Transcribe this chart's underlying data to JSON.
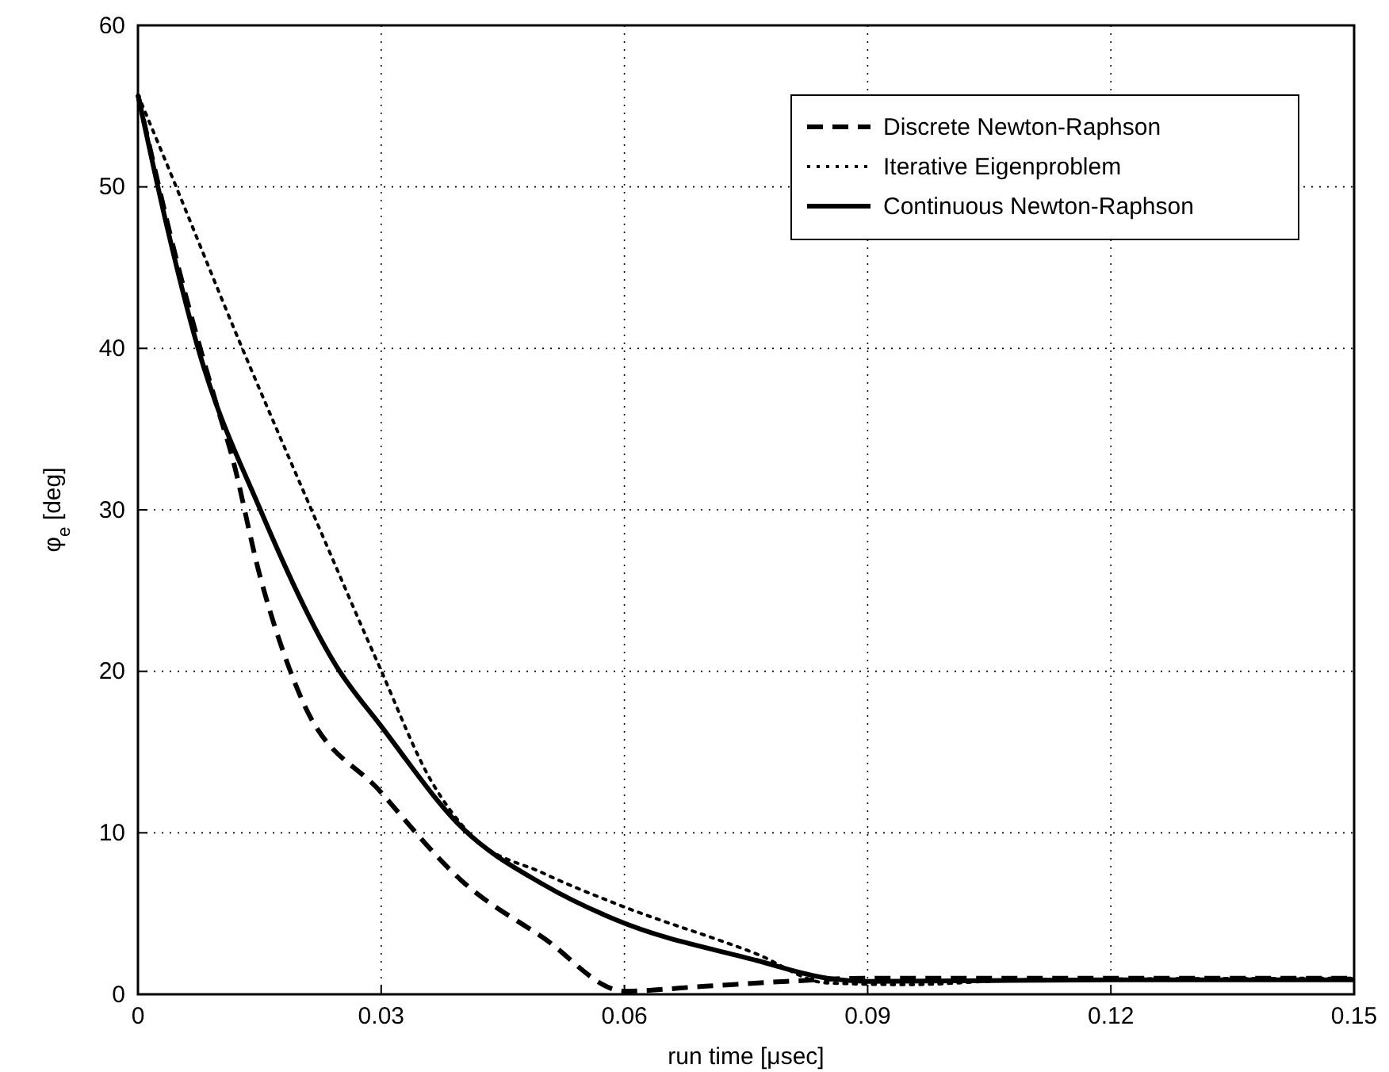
{
  "chart_data": {
    "type": "line",
    "xlabel": "run time [μsec]",
    "ylabel": "φ$_{e}$ [deg]",
    "xlim": [
      0,
      0.15
    ],
    "xticks": [
      0,
      0.03,
      0.06,
      0.09,
      0.12,
      0.15
    ],
    "ylim": [
      0,
      60
    ],
    "yticks": [
      0,
      10,
      20,
      30,
      40,
      50,
      60
    ],
    "grid": true,
    "legend": "top right",
    "marker": "none",
    "series": [
      {
        "name": "Discrete Newton-Raphson",
        "color": "#000000",
        "line_style": "dashed",
        "x": [
          0,
          0.005,
          0.01,
          0.0115,
          0.015,
          0.02,
          0.03,
          0.04,
          0.05,
          0.06,
          0.07,
          0.08,
          0.09,
          0.15
        ],
        "values": [
          55.7,
          45,
          36,
          33.5,
          26,
          18.5,
          12.5,
          7,
          3.5,
          0.2,
          0.5,
          0.8,
          1,
          1
        ]
      },
      {
        "name": "Iterative Eigenproblem",
        "color": "#000000",
        "line_style": "dotted",
        "x": [
          0,
          0.0025,
          0.0127,
          0.0214,
          0.0296,
          0.0363,
          0.041,
          0.05,
          0.059,
          0.0763,
          0.085,
          0.095,
          0.11,
          0.15
        ],
        "values": [
          55.7,
          52.7,
          40.2,
          30,
          20.5,
          13.1,
          9.9,
          7.5,
          5.6,
          2.5,
          0.7,
          0.6,
          0.9,
          1
        ]
      },
      {
        "name": "Continuous Newton-Raphson",
        "color": "#000000",
        "line_style": "solid",
        "x": [
          0,
          0.0036,
          0.0073,
          0.0151,
          0.0245,
          0.03,
          0.04,
          0.05,
          0.059,
          0.0763,
          0.085,
          0.09,
          0.12,
          0.15
        ],
        "values": [
          55.7,
          47.5,
          40.2,
          30,
          20.3,
          16.6,
          10.3,
          6.8,
          4.6,
          2.1,
          1,
          0.8,
          0.9,
          0.9
        ]
      }
    ]
  }
}
